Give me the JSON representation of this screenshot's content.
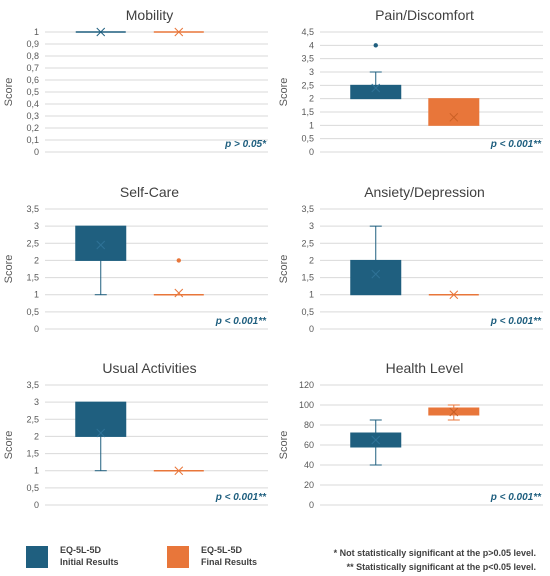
{
  "chart_data": [
    {
      "type": "box",
      "title": "Mobility",
      "ylabel": "Score",
      "ylim": [
        0,
        1
      ],
      "yticks": [
        "0",
        "0,1",
        "0,2",
        "0,3",
        "0,4",
        "0,5",
        "0,6",
        "0,7",
        "0,8",
        "0,9",
        "1"
      ],
      "p_label": "p > 0.05*",
      "series": [
        {
          "min": 1,
          "q1": 1,
          "median": 1,
          "q3": 1,
          "max": 1,
          "mean": 1,
          "outliers": []
        },
        {
          "min": 1,
          "q1": 1,
          "median": 1,
          "q3": 1,
          "max": 1,
          "mean": 1,
          "outliers": []
        }
      ]
    },
    {
      "type": "box",
      "title": "Pain/Discomfort",
      "ylabel": "Score",
      "ylim": [
        0,
        4.5
      ],
      "yticks": [
        "0",
        "0,5",
        "1",
        "1,5",
        "2",
        "2,5",
        "3",
        "3,5",
        "4",
        "4,5"
      ],
      "p_label": "p < 0.001**",
      "series": [
        {
          "min": 2,
          "q1": 2,
          "median": 2.5,
          "q3": 2.5,
          "max": 3,
          "mean": 2.4,
          "outliers": [
            4
          ]
        },
        {
          "min": 1,
          "q1": 1,
          "median": 2,
          "q3": 2,
          "max": 2,
          "mean": 1.3,
          "outliers": []
        }
      ]
    },
    {
      "type": "box",
      "title": "Self-Care",
      "ylabel": "Score",
      "ylim": [
        0,
        3.5
      ],
      "yticks": [
        "0",
        "0,5",
        "1",
        "1,5",
        "2",
        "2,5",
        "3",
        "3,5"
      ],
      "p_label": "p < 0.001**",
      "series": [
        {
          "min": 1,
          "q1": 2,
          "median": 3,
          "q3": 3,
          "max": 3,
          "mean": 2.45,
          "outliers": []
        },
        {
          "min": 1,
          "q1": 1,
          "median": 1,
          "q3": 1,
          "max": 1,
          "mean": 1.05,
          "outliers": [
            2
          ]
        }
      ]
    },
    {
      "type": "box",
      "title": "Ansiety/Depression",
      "ylabel": "Score",
      "ylim": [
        0,
        3.5
      ],
      "yticks": [
        "0",
        "0,5",
        "1",
        "1,5",
        "2",
        "2,5",
        "3",
        "3,5"
      ],
      "p_label": "p < 0.001**",
      "series": [
        {
          "min": 1,
          "q1": 1,
          "median": 2,
          "q3": 2,
          "max": 3,
          "mean": 1.6,
          "outliers": []
        },
        {
          "min": 1,
          "q1": 1,
          "median": 1,
          "q3": 1,
          "max": 1,
          "mean": 1,
          "outliers": []
        }
      ]
    },
    {
      "type": "box",
      "title": "Usual Activities",
      "ylabel": "Score",
      "ylim": [
        0,
        3.5
      ],
      "yticks": [
        "0",
        "0,5",
        "1",
        "1,5",
        "2",
        "2,5",
        "3",
        "3,5"
      ],
      "p_label": "p < 0.001**",
      "series": [
        {
          "min": 1,
          "q1": 2,
          "median": 3,
          "q3": 3,
          "max": 3,
          "mean": 2.1,
          "outliers": []
        },
        {
          "min": 1,
          "q1": 1,
          "median": 1,
          "q3": 1,
          "max": 1,
          "mean": 1,
          "outliers": []
        }
      ]
    },
    {
      "type": "box",
      "title": "Health Level",
      "ylabel": "Score",
      "ylim": [
        0,
        120
      ],
      "yticks": [
        "0",
        "20",
        "40",
        "60",
        "80",
        "100",
        "120"
      ],
      "p_label": "p < 0.001**",
      "series": [
        {
          "min": 40,
          "q1": 58,
          "median": 65,
          "q3": 72,
          "max": 85,
          "mean": 65,
          "outliers": []
        },
        {
          "min": 85,
          "q1": 90,
          "median": 95,
          "q3": 97,
          "max": 100,
          "mean": 93,
          "outliers": []
        }
      ]
    }
  ],
  "colors": {
    "initial": "#1f5f7f",
    "final": "#e8763a",
    "p_value": "#1f5f7f",
    "grid": "#d9d9d9",
    "axis_text": "#595959"
  },
  "legend": [
    {
      "line1": "EQ-5L-5D",
      "line2": "Initial Results",
      "color": "#1f5f7f"
    },
    {
      "line1": "EQ-5L-5D",
      "line2": "Final Results",
      "color": "#e8763a"
    }
  ],
  "notes": [
    "* Not statistically significant at the p>0.05 level.",
    "** Statistically significant at the p<0.05 level."
  ]
}
